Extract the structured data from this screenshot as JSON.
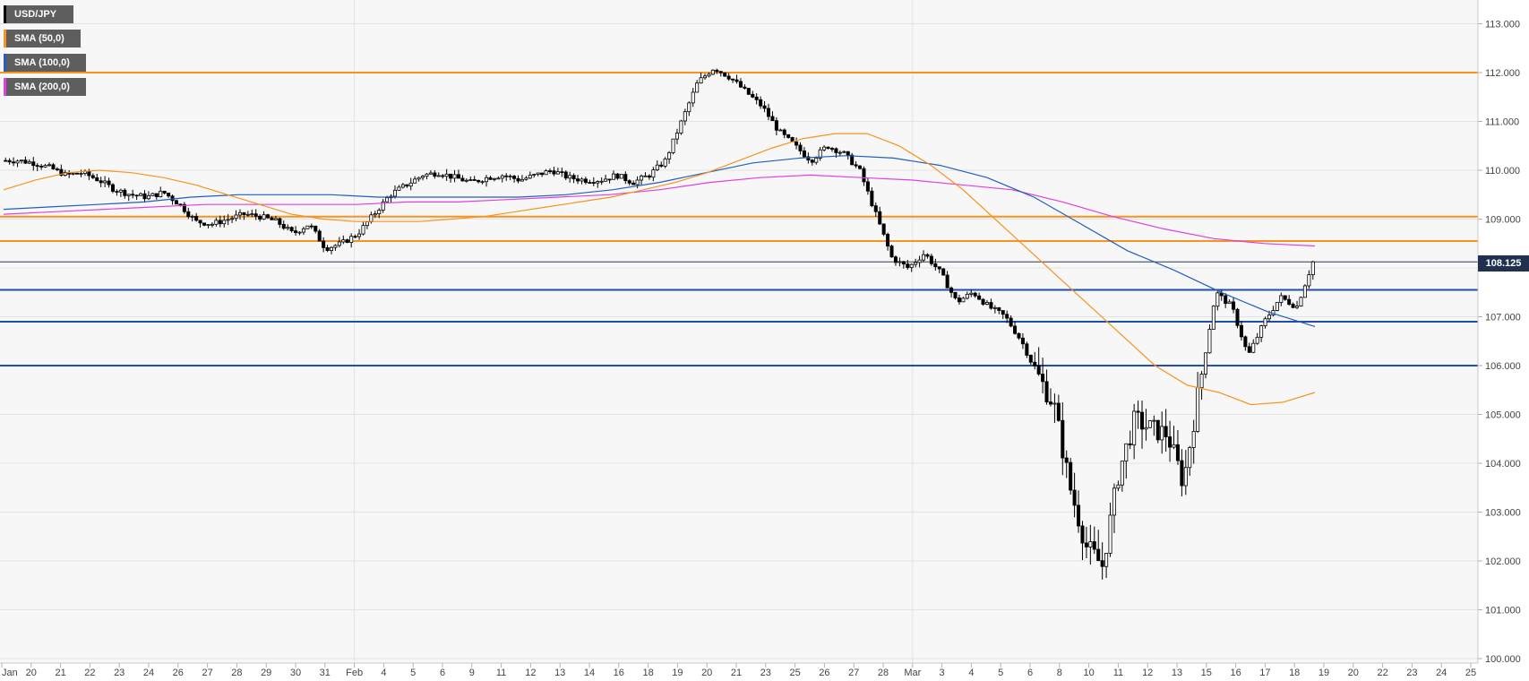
{
  "chart_data": {
    "type": "candlestick",
    "title": "",
    "instrument": "USD/JPY",
    "ylim": [
      100.0,
      113.3
    ],
    "y_ticks": [
      "113.000",
      "112.000",
      "111.000",
      "110.000",
      "109.000",
      "108.000",
      "107.000",
      "106.000",
      "105.000",
      "104.000",
      "103.000",
      "102.000",
      "101.000",
      "100.000"
    ],
    "y_tick_values": [
      113,
      112,
      111,
      110,
      109,
      108,
      107,
      106,
      105,
      104,
      103,
      102,
      101,
      100
    ],
    "x_ticks": [
      "Jan",
      "20",
      "21",
      "22",
      "23",
      "24",
      "26",
      "27",
      "28",
      "29",
      "30",
      "31",
      "Feb",
      "4",
      "5",
      "6",
      "9",
      "11",
      "12",
      "13",
      "14",
      "16",
      "18",
      "19",
      "20",
      "21",
      "23",
      "25",
      "26",
      "27",
      "28",
      "Mar",
      "3",
      "4",
      "5",
      "6",
      "8",
      "10",
      "11",
      "12",
      "13",
      "15",
      "16",
      "17",
      "18",
      "19",
      "20",
      "22",
      "23",
      "24",
      "25"
    ],
    "current_price": 108.125,
    "current_price_label": "108.125",
    "legend": [
      {
        "label": "USD/JPY",
        "color": "#000000"
      },
      {
        "label": "SMA (50,0)",
        "color": "#f7931e"
      },
      {
        "label": "SMA (100,0)",
        "color": "#1f5fbf"
      },
      {
        "label": "SMA (200,0)",
        "color": "#e040e0"
      }
    ],
    "horizontal_levels": [
      {
        "value": 112.0,
        "color": "#f7931e"
      },
      {
        "value": 109.05,
        "color": "#f7931e"
      },
      {
        "value": 108.55,
        "color": "#f7931e"
      },
      {
        "value": 108.125,
        "color": "#2b3a55"
      },
      {
        "value": 107.55,
        "color": "#1f4fa8"
      },
      {
        "value": 106.9,
        "color": "#1f4fa8"
      },
      {
        "value": 106.0,
        "color": "#1f4fa8"
      }
    ],
    "close_path": [
      110.2,
      110.2,
      110.15,
      110.05,
      109.9,
      109.95,
      109.8,
      109.6,
      109.5,
      109.45,
      109.55,
      109.3,
      108.95,
      108.9,
      109.0,
      109.1,
      109.05,
      108.95,
      108.7,
      108.9,
      108.4,
      108.5,
      108.7,
      109.1,
      109.5,
      109.7,
      109.9,
      109.95,
      109.85,
      109.75,
      109.85,
      109.9,
      109.8,
      109.9,
      110.0,
      109.85,
      109.8,
      109.8,
      109.9,
      109.75,
      109.9,
      110.2,
      111.0,
      111.8,
      112.1,
      111.9,
      111.6,
      111.3,
      110.8,
      110.5,
      110.2,
      110.5,
      110.35,
      110.0,
      109.1,
      108.2,
      108.0,
      108.3,
      107.9,
      107.3,
      107.5,
      107.2,
      107.0,
      106.5,
      105.8,
      105.2,
      103.5,
      102.3,
      101.9,
      103.8,
      104.9,
      104.7,
      104.6,
      103.6,
      105.6,
      107.5,
      107.2,
      106.2,
      106.9,
      107.4,
      107.2,
      108.125
    ],
    "sma_50": [
      109.6,
      109.8,
      109.95,
      110.0,
      109.95,
      109.85,
      109.7,
      109.5,
      109.3,
      109.1,
      109.0,
      108.95,
      108.95,
      108.95,
      109.0,
      109.05,
      109.15,
      109.25,
      109.35,
      109.45,
      109.6,
      109.75,
      109.95,
      110.2,
      110.45,
      110.65,
      110.75,
      110.75,
      110.5,
      110.1,
      109.6,
      109.0,
      108.4,
      107.8,
      107.2,
      106.6,
      106.0,
      105.6,
      105.45,
      105.2,
      105.25,
      105.45
    ],
    "sma_100": [
      109.2,
      109.25,
      109.3,
      109.35,
      109.45,
      109.5,
      109.5,
      109.5,
      109.45,
      109.45,
      109.45,
      109.45,
      109.5,
      109.6,
      109.75,
      109.95,
      110.15,
      110.25,
      110.3,
      110.25,
      110.1,
      109.85,
      109.45,
      108.9,
      108.35,
      107.95,
      107.5,
      107.1,
      106.8
    ],
    "sma_200": [
      109.1,
      109.15,
      109.2,
      109.25,
      109.3,
      109.3,
      109.3,
      109.3,
      109.35,
      109.35,
      109.4,
      109.45,
      109.5,
      109.6,
      109.75,
      109.85,
      109.9,
      109.85,
      109.8,
      109.7,
      109.6,
      109.35,
      109.05,
      108.8,
      108.6,
      108.5,
      108.45
    ]
  }
}
